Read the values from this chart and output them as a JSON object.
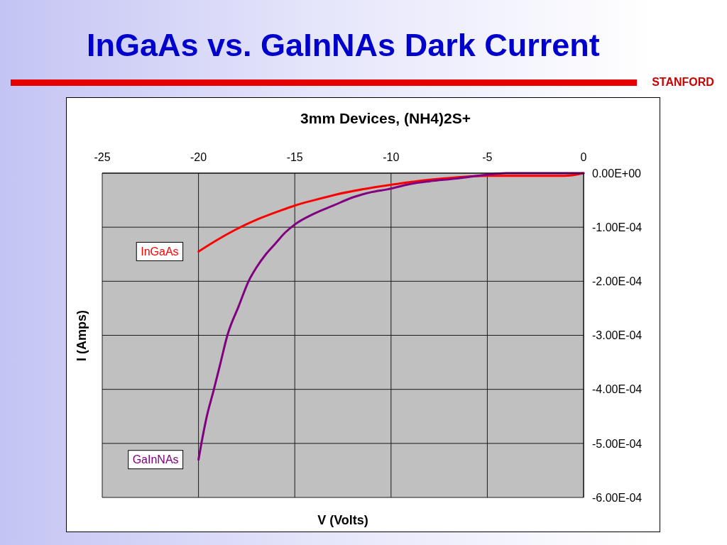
{
  "chart_data": {
    "type": "line",
    "title": "InGaAs vs. GaInNAs Dark Current",
    "subtitle": "3mm Devices, (NH4)2S+",
    "xlabel": "V (Volts)",
    "ylabel": "I (Amps)",
    "annotations": [
      "STANFORD"
    ],
    "xlim": [
      -25,
      0
    ],
    "xticks": [
      -25,
      -20,
      -15,
      -10,
      -5,
      0
    ],
    "ylim": [
      -0.0006,
      0
    ],
    "yticks": [
      {
        "value": -0.0006,
        "label": "-6.00E-04"
      },
      {
        "value": -0.0005,
        "label": "-5.00E-04"
      },
      {
        "value": -0.0004,
        "label": "-4.00E-04"
      },
      {
        "value": -0.0003,
        "label": "-3.00E-04"
      },
      {
        "value": -0.0002,
        "label": "-2.00E-04"
      },
      {
        "value": -0.0001,
        "label": "-1.00E-04"
      },
      {
        "value": 0,
        "label": "0.00E+00"
      }
    ],
    "grid": true,
    "series": [
      {
        "name": "InGaAs",
        "color": "#ff0000",
        "x": [
          -20,
          -19.1,
          -18.1,
          -16.9,
          -15.8,
          -15,
          -14,
          -12.9,
          -11.5,
          -9.7,
          -8.7,
          -7.3,
          -5,
          -1,
          0
        ],
        "values": [
          -0.000145,
          -0.000125,
          -0.000105,
          -8.5e-05,
          -7e-05,
          -6e-05,
          -5e-05,
          -4e-05,
          -3e-05,
          -2e-05,
          -1.5e-05,
          -1e-05,
          -5e-06,
          -5e-06,
          0
        ]
      },
      {
        "name": "GaInNAs",
        "color": "#800080",
        "x": [
          -20,
          -19.85,
          -19.6,
          -19.2,
          -18.85,
          -18.5,
          -17.9,
          -17.4,
          -17,
          -16.5,
          -16,
          -15.5,
          -15,
          -14,
          -13,
          -12,
          -11,
          -10.2,
          -9,
          -8,
          -6.6,
          -5.5,
          -4,
          -3,
          -2,
          -1,
          0
        ],
        "values": [
          -0.00053,
          -0.0005,
          -0.000455,
          -0.0004,
          -0.00035,
          -0.0003,
          -0.000245,
          -0.0002,
          -0.000175,
          -0.00015,
          -0.00013,
          -0.00011,
          -9.5e-05,
          -7.5e-05,
          -6e-05,
          -4.5e-05,
          -3.5e-05,
          -3e-05,
          -2e-05,
          -1.5e-05,
          -1e-05,
          -5e-06,
          0,
          0,
          0,
          0,
          0
        ]
      }
    ]
  }
}
